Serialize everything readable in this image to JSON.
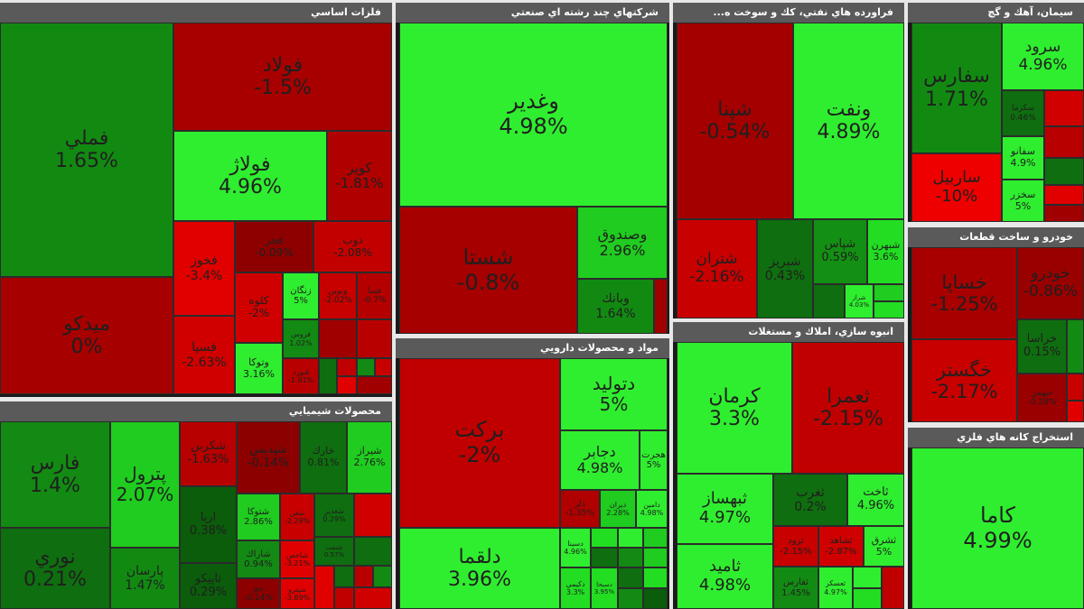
{
  "colors": {
    "strong_red": "#b20000",
    "red": "#cc0000",
    "bright_red": "#e80000",
    "dark_green": "#0b7a0b",
    "green": "#17b317",
    "bright_green": "#22ee22"
  },
  "panels": {
    "basic_metals": {
      "title": "فلزات اساسي",
      "tiles": [
        {
          "name": "فملي",
          "pct": "1.65%",
          "color": "#128a12"
        },
        {
          "name": "ميدكو",
          "pct": "0%",
          "color": "#a70000"
        },
        {
          "name": "فولاد",
          "pct": "-1.5%",
          "color": "#a80000"
        },
        {
          "name": "فولاژ",
          "pct": "4.96%",
          "color": "#2fee2f"
        },
        {
          "name": "كوير",
          "pct": "-1.81%",
          "color": "#b00000"
        },
        {
          "name": "فجر",
          "pct": "-0.09%",
          "color": "#8e0000"
        },
        {
          "name": "ذوب",
          "pct": "-2.08%",
          "color": "#c30000"
        },
        {
          "name": "فخوز",
          "pct": "-3.4%",
          "color": "#e00000"
        },
        {
          "name": "كلوه",
          "pct": "-2%",
          "color": "#d00000"
        },
        {
          "name": "زنگان",
          "pct": "5%",
          "color": "#2fee2f"
        },
        {
          "name": "ونوين",
          "pct": "-2.02%",
          "color": "#c70000"
        },
        {
          "name": "فسا",
          "pct": "-0.7%",
          "color": "#b50000"
        },
        {
          "name": "فسپا",
          "pct": "-2.63%",
          "color": "#d00000"
        },
        {
          "name": "وتوكا",
          "pct": "3.16%",
          "color": "#2fee2f"
        },
        {
          "name": "فروس",
          "pct": "1.02%",
          "color": "#138a13"
        },
        {
          "name": "فنورد",
          "pct": "-1.91%",
          "color": "#b80000"
        }
      ]
    },
    "multi": {
      "title": "شركتهاي چند رشته اي صنعتي",
      "tiles": [
        {
          "name": "وغدير",
          "pct": "4.98%",
          "color": "#2fee2f"
        },
        {
          "name": "شستا",
          "pct": "-0.8%",
          "color": "#a60000"
        },
        {
          "name": "وصندوق",
          "pct": "2.96%",
          "color": "#1fcc1f"
        },
        {
          "name": "وبانك",
          "pct": "1.64%",
          "color": "#128a12"
        }
      ]
    },
    "oil": {
      "title": "فراورده هاي نفتي، كك و سوخت ه...",
      "tiles": [
        {
          "name": "شپنا",
          "pct": "-0.54%",
          "color": "#a40000"
        },
        {
          "name": "ونفت",
          "pct": "4.89%",
          "color": "#2fee2f"
        },
        {
          "name": "شتران",
          "pct": "-2.16%",
          "color": "#c80000"
        },
        {
          "name": "شبريز",
          "pct": "0.43%",
          "color": "#0f6e0f"
        },
        {
          "name": "شپاس",
          "pct": "0.59%",
          "color": "#139013"
        },
        {
          "name": "شبهرن",
          "pct": "3.6%",
          "color": "#22dd22"
        },
        {
          "name": "شراز",
          "pct": "4.03%",
          "color": "#2fee2f"
        }
      ]
    },
    "cement": {
      "title": "سيمان، آهك و گچ",
      "tiles": [
        {
          "name": "سفارس",
          "pct": "1.71%",
          "color": "#128a12"
        },
        {
          "name": "سرود",
          "pct": "4.96%",
          "color": "#2fee2f"
        },
        {
          "name": "ساربيل",
          "pct": "-10%",
          "color": "#ee0000"
        },
        {
          "name": "سفانو",
          "pct": "4.9%",
          "color": "#2fee2f"
        },
        {
          "name": "سخزر",
          "pct": "5%",
          "color": "#2fee2f"
        },
        {
          "name": "سكرما",
          "pct": "0.46%",
          "color": "#0f6e0f"
        }
      ]
    },
    "auto": {
      "title": "خودرو و ساخت قطعات",
      "tiles": [
        {
          "name": "خساپا",
          "pct": "-1.25%",
          "color": "#a80000"
        },
        {
          "name": "خودرو",
          "pct": "-0.86%",
          "color": "#990000"
        },
        {
          "name": "خگستر",
          "pct": "-2.17%",
          "color": "#c80000"
        },
        {
          "name": "خراسا",
          "pct": "0.15%",
          "color": "#0f6e0f"
        },
        {
          "name": "خبهمن",
          "pct": "-0.28%",
          "color": "#9a0000"
        }
      ]
    },
    "chemicals": {
      "title": "محصولات شيميايي",
      "tiles": [
        {
          "name": "فارس",
          "pct": "1.4%",
          "color": "#138a13"
        },
        {
          "name": "نوري",
          "pct": "0.21%",
          "color": "#0f6e0f"
        },
        {
          "name": "پترول",
          "pct": "2.07%",
          "color": "#1fcc1f"
        },
        {
          "name": "پارسان",
          "pct": "1.47%",
          "color": "#128a12"
        },
        {
          "name": "شكربن",
          "pct": "-1.63%",
          "color": "#b80000"
        },
        {
          "name": "شپديس",
          "pct": "-0.14%",
          "color": "#8c0000"
        },
        {
          "name": "خارك",
          "pct": "0.81%",
          "color": "#0f6e0f"
        },
        {
          "name": "شيراز",
          "pct": "2.76%",
          "color": "#1fcc1f"
        },
        {
          "name": "اريا",
          "pct": "0.38%",
          "color": "#0b5c0b"
        },
        {
          "name": "شتوكا",
          "pct": "2.86%",
          "color": "#1fcc1f"
        },
        {
          "name": "شفن",
          "pct": "-2.29%",
          "color": "#c80000"
        },
        {
          "name": "شغدير",
          "pct": "0.29%",
          "color": "#0f6e0f"
        },
        {
          "name": "شاراك",
          "pct": "0.94%",
          "color": "#138a13"
        },
        {
          "name": "تاپيكو",
          "pct": "0.29%",
          "color": "#0b5c0b"
        },
        {
          "name": "جم",
          "pct": "-0.14%",
          "color": "#8c0000"
        },
        {
          "name": "شاخص",
          "pct": "-3.21%",
          "color": "#e00000"
        },
        {
          "name": "شنفت",
          "pct": "0.57%",
          "color": "#0f6e0f"
        },
        {
          "name": "شپترو",
          "pct": "-3.89%",
          "color": "#e00000"
        }
      ]
    },
    "pharma": {
      "title": "مواد و محصولات دارويي",
      "tiles": [
        {
          "name": "بركت",
          "pct": "-2%",
          "color": "#c00000"
        },
        {
          "name": "دلقما",
          "pct": "3.96%",
          "color": "#2fee2f"
        },
        {
          "name": "دتوليد",
          "pct": "5%",
          "color": "#2fee2f"
        },
        {
          "name": "دجابر",
          "pct": "4.98%",
          "color": "#2fee2f"
        },
        {
          "name": "هجرت",
          "pct": "5%",
          "color": "#2fee2f"
        },
        {
          "name": "دلر",
          "pct": "-1.35%",
          "color": "#b00000"
        },
        {
          "name": "ديران",
          "pct": "2.28%",
          "color": "#1fcc1f"
        },
        {
          "name": "دامين",
          "pct": "4.98%",
          "color": "#2fee2f"
        },
        {
          "name": "دسينا",
          "pct": "4.96%",
          "color": "#2fee2f"
        },
        {
          "name": "دكيمي",
          "pct": "3.3%",
          "color": "#22dd22"
        },
        {
          "name": "دسبحا",
          "pct": "3.95%",
          "color": "#22dd22"
        }
      ]
    },
    "construction": {
      "title": "انبوه سازي، املاك و مستغلات",
      "tiles": [
        {
          "name": "كرمان",
          "pct": "3.3%",
          "color": "#2fee2f"
        },
        {
          "name": "ثعمرا",
          "pct": "-2.15%",
          "color": "#c00000"
        },
        {
          "name": "ثبهساز",
          "pct": "4.97%",
          "color": "#2fee2f"
        },
        {
          "name": "ثامید",
          "pct": "4.98%",
          "color": "#2fee2f"
        },
        {
          "name": "ثغرب",
          "pct": "0.2%",
          "color": "#0f6e0f"
        },
        {
          "name": "ثاخت",
          "pct": "4.96%",
          "color": "#2fee2f"
        },
        {
          "name": "ثرود",
          "pct": "-2.15%",
          "color": "#c80000"
        },
        {
          "name": "ثشاهد",
          "pct": "-2.87%",
          "color": "#d00000"
        },
        {
          "name": "ثشرق",
          "pct": "5%",
          "color": "#2fee2f"
        },
        {
          "name": "ثفارس",
          "pct": "1.45%",
          "color": "#138a13"
        },
        {
          "name": "ثعسكر",
          "pct": "4.97%",
          "color": "#2fee2f"
        }
      ]
    },
    "mining": {
      "title": "استخراج كانه هاي فلزي",
      "tiles": [
        {
          "name": "كاما",
          "pct": "4.99%",
          "color": "#2fee2f"
        }
      ]
    }
  }
}
